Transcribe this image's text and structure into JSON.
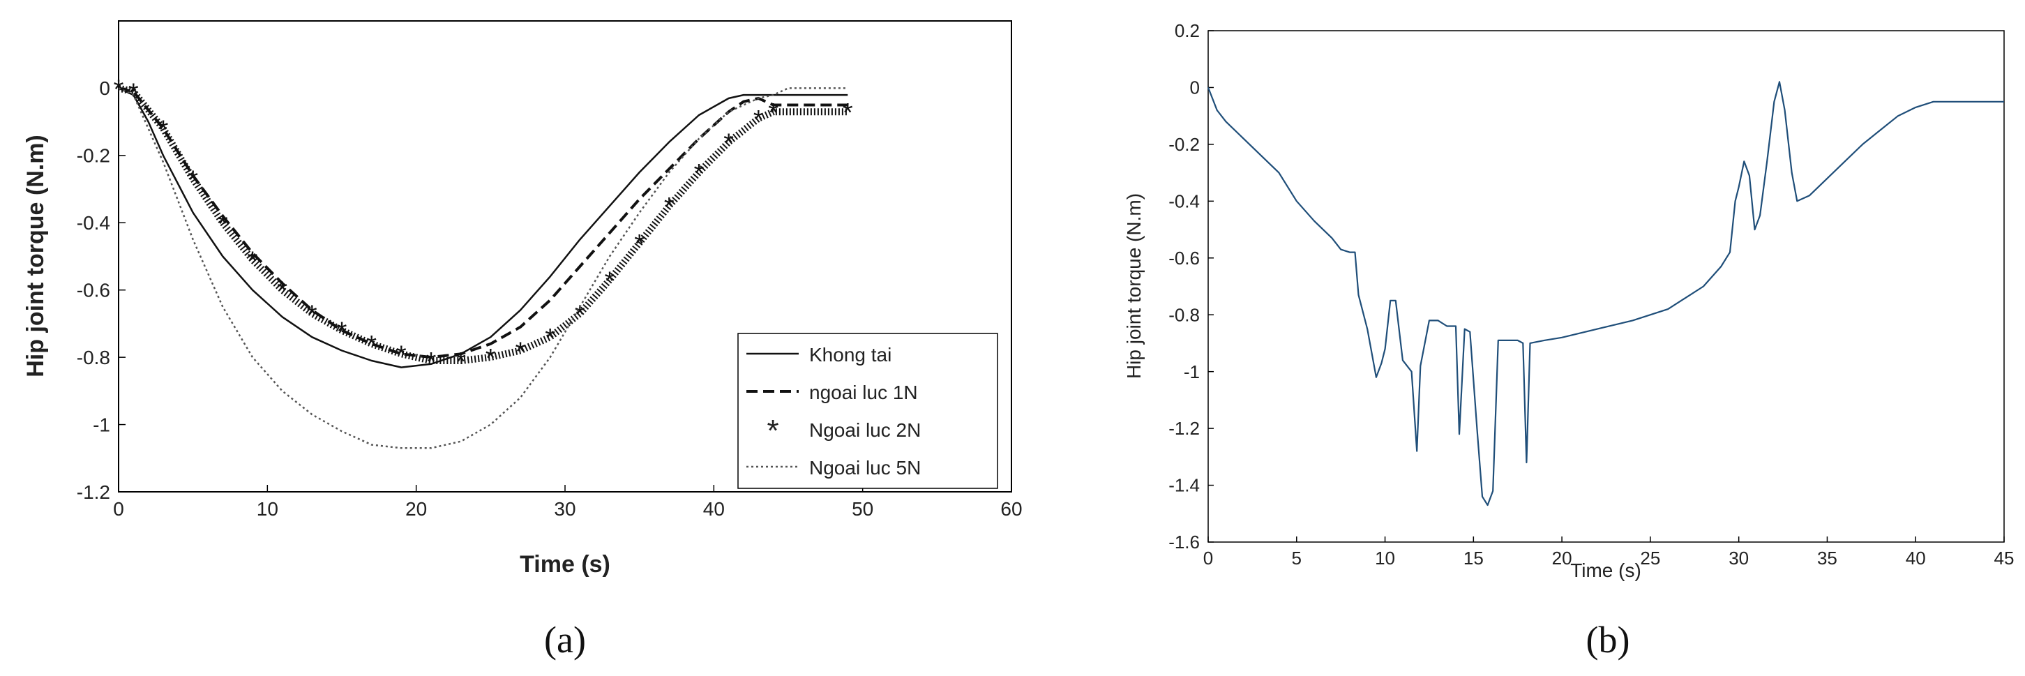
{
  "chart_data": [
    {
      "panel": "a",
      "type": "line",
      "xlabel": "Time (s)",
      "ylabel": "Hip joint torque (N.m)",
      "xlim": [
        0,
        60
      ],
      "ylim": [
        -1.2,
        0.2
      ],
      "xticks": [
        0,
        10,
        20,
        30,
        40,
        50,
        60
      ],
      "yticks": [
        0,
        -0.2,
        -0.4,
        -0.6,
        -0.8,
        -1,
        -1.2
      ],
      "legend_position": "bottom-right",
      "series": [
        {
          "name": "Khong tai",
          "style": "solid",
          "points": [
            [
              0,
              0
            ],
            [
              1,
              -0.02
            ],
            [
              2,
              -0.1
            ],
            [
              3,
              -0.2
            ],
            [
              5,
              -0.37
            ],
            [
              7,
              -0.5
            ],
            [
              9,
              -0.6
            ],
            [
              11,
              -0.68
            ],
            [
              13,
              -0.74
            ],
            [
              15,
              -0.78
            ],
            [
              17,
              -0.81
            ],
            [
              19,
              -0.83
            ],
            [
              21,
              -0.82
            ],
            [
              23,
              -0.79
            ],
            [
              25,
              -0.74
            ],
            [
              27,
              -0.66
            ],
            [
              29,
              -0.56
            ],
            [
              31,
              -0.45
            ],
            [
              33,
              -0.35
            ],
            [
              35,
              -0.25
            ],
            [
              37,
              -0.16
            ],
            [
              39,
              -0.08
            ],
            [
              41,
              -0.03
            ],
            [
              42,
              -0.02
            ],
            [
              43,
              -0.02
            ],
            [
              49,
              -0.02
            ]
          ]
        },
        {
          "name": "ngoai luc 1N",
          "style": "dashed",
          "points": [
            [
              0,
              0
            ],
            [
              1,
              -0.01
            ],
            [
              3,
              -0.12
            ],
            [
              5,
              -0.26
            ],
            [
              7,
              -0.38
            ],
            [
              9,
              -0.49
            ],
            [
              11,
              -0.58
            ],
            [
              13,
              -0.66
            ],
            [
              15,
              -0.72
            ],
            [
              17,
              -0.76
            ],
            [
              19,
              -0.79
            ],
            [
              21,
              -0.8
            ],
            [
              23,
              -0.79
            ],
            [
              25,
              -0.76
            ],
            [
              27,
              -0.71
            ],
            [
              29,
              -0.63
            ],
            [
              31,
              -0.53
            ],
            [
              33,
              -0.43
            ],
            [
              35,
              -0.33
            ],
            [
              37,
              -0.24
            ],
            [
              39,
              -0.15
            ],
            [
              41,
              -0.07
            ],
            [
              42,
              -0.04
            ],
            [
              43,
              -0.03
            ],
            [
              44,
              -0.05
            ],
            [
              49,
              -0.05
            ]
          ]
        },
        {
          "name": "Ngoai luc 2N",
          "style": "star",
          "points": [
            [
              0,
              0
            ],
            [
              1,
              -0.01
            ],
            [
              3,
              -0.12
            ],
            [
              5,
              -0.27
            ],
            [
              7,
              -0.4
            ],
            [
              9,
              -0.51
            ],
            [
              11,
              -0.6
            ],
            [
              13,
              -0.67
            ],
            [
              15,
              -0.72
            ],
            [
              17,
              -0.76
            ],
            [
              19,
              -0.79
            ],
            [
              21,
              -0.81
            ],
            [
              23,
              -0.81
            ],
            [
              25,
              -0.8
            ],
            [
              27,
              -0.78
            ],
            [
              29,
              -0.74
            ],
            [
              31,
              -0.67
            ],
            [
              33,
              -0.57
            ],
            [
              35,
              -0.46
            ],
            [
              37,
              -0.35
            ],
            [
              39,
              -0.25
            ],
            [
              41,
              -0.16
            ],
            [
              43,
              -0.09
            ],
            [
              44,
              -0.07
            ],
            [
              49,
              -0.07
            ]
          ]
        },
        {
          "name": "Ngoai luc 5N",
          "style": "dotted",
          "points": [
            [
              0,
              0
            ],
            [
              1,
              -0.02
            ],
            [
              3,
              -0.22
            ],
            [
              5,
              -0.45
            ],
            [
              7,
              -0.65
            ],
            [
              9,
              -0.8
            ],
            [
              11,
              -0.9
            ],
            [
              13,
              -0.97
            ],
            [
              15,
              -1.02
            ],
            [
              17,
              -1.06
            ],
            [
              19,
              -1.07
            ],
            [
              21,
              -1.07
            ],
            [
              23,
              -1.05
            ],
            [
              25,
              -1.0
            ],
            [
              27,
              -0.92
            ],
            [
              29,
              -0.8
            ],
            [
              31,
              -0.65
            ],
            [
              33,
              -0.5
            ],
            [
              35,
              -0.37
            ],
            [
              37,
              -0.25
            ],
            [
              39,
              -0.15
            ],
            [
              41,
              -0.07
            ],
            [
              43,
              -0.03
            ],
            [
              44,
              -0.02
            ],
            [
              45,
              0.0
            ],
            [
              49,
              0.0
            ]
          ]
        }
      ]
    },
    {
      "panel": "b",
      "type": "line",
      "xlabel": "Time (s)",
      "ylabel": "Hip joint torque (N.m)",
      "xlim": [
        0,
        45
      ],
      "ylim": [
        -1.6,
        0.2
      ],
      "xticks": [
        0,
        5,
        10,
        15,
        20,
        25,
        30,
        35,
        40,
        45
      ],
      "yticks": [
        0.2,
        0,
        -0.2,
        -0.4,
        -0.6,
        -0.8,
        -1,
        -1.2,
        -1.4,
        -1.6
      ],
      "series": [
        {
          "color": "#1f4e79",
          "points": [
            [
              0,
              0
            ],
            [
              0.5,
              -0.08
            ],
            [
              1,
              -0.12
            ],
            [
              2,
              -0.18
            ],
            [
              3,
              -0.24
            ],
            [
              4,
              -0.3
            ],
            [
              5,
              -0.4
            ],
            [
              6,
              -0.47
            ],
            [
              7,
              -0.53
            ],
            [
              7.5,
              -0.57
            ],
            [
              8,
              -0.58
            ],
            [
              8.3,
              -0.58
            ],
            [
              8.5,
              -0.73
            ],
            [
              9,
              -0.85
            ],
            [
              9.5,
              -1.02
            ],
            [
              9.8,
              -0.97
            ],
            [
              10,
              -0.92
            ],
            [
              10.3,
              -0.75
            ],
            [
              10.6,
              -0.75
            ],
            [
              11,
              -0.96
            ],
            [
              11.5,
              -1.0
            ],
            [
              11.8,
              -1.28
            ],
            [
              12,
              -0.98
            ],
            [
              12.5,
              -0.82
            ],
            [
              13,
              -0.82
            ],
            [
              13.5,
              -0.84
            ],
            [
              14,
              -0.84
            ],
            [
              14.2,
              -1.22
            ],
            [
              14.5,
              -0.85
            ],
            [
              14.8,
              -0.86
            ],
            [
              15.2,
              -1.2
            ],
            [
              15.5,
              -1.44
            ],
            [
              15.8,
              -1.47
            ],
            [
              16.1,
              -1.42
            ],
            [
              16.4,
              -0.89
            ],
            [
              17,
              -0.89
            ],
            [
              17.5,
              -0.89
            ],
            [
              17.8,
              -0.9
            ],
            [
              18,
              -1.32
            ],
            [
              18.2,
              -0.9
            ],
            [
              19,
              -0.89
            ],
            [
              20,
              -0.88
            ],
            [
              22,
              -0.85
            ],
            [
              24,
              -0.82
            ],
            [
              26,
              -0.78
            ],
            [
              27,
              -0.74
            ],
            [
              28,
              -0.7
            ],
            [
              29,
              -0.63
            ],
            [
              29.5,
              -0.58
            ],
            [
              29.8,
              -0.4
            ],
            [
              30,
              -0.35
            ],
            [
              30.3,
              -0.26
            ],
            [
              30.6,
              -0.31
            ],
            [
              30.9,
              -0.5
            ],
            [
              31.2,
              -0.45
            ],
            [
              31.6,
              -0.26
            ],
            [
              32,
              -0.05
            ],
            [
              32.3,
              0.02
            ],
            [
              32.6,
              -0.08
            ],
            [
              33,
              -0.3
            ],
            [
              33.3,
              -0.4
            ],
            [
              34,
              -0.38
            ],
            [
              35,
              -0.32
            ],
            [
              36,
              -0.26
            ],
            [
              37,
              -0.2
            ],
            [
              38,
              -0.15
            ],
            [
              39,
              -0.1
            ],
            [
              40,
              -0.07
            ],
            [
              41,
              -0.05
            ],
            [
              42,
              -0.05
            ],
            [
              45,
              -0.05
            ]
          ]
        }
      ]
    }
  ],
  "captions": {
    "a": "(a)",
    "b": "(b)"
  }
}
